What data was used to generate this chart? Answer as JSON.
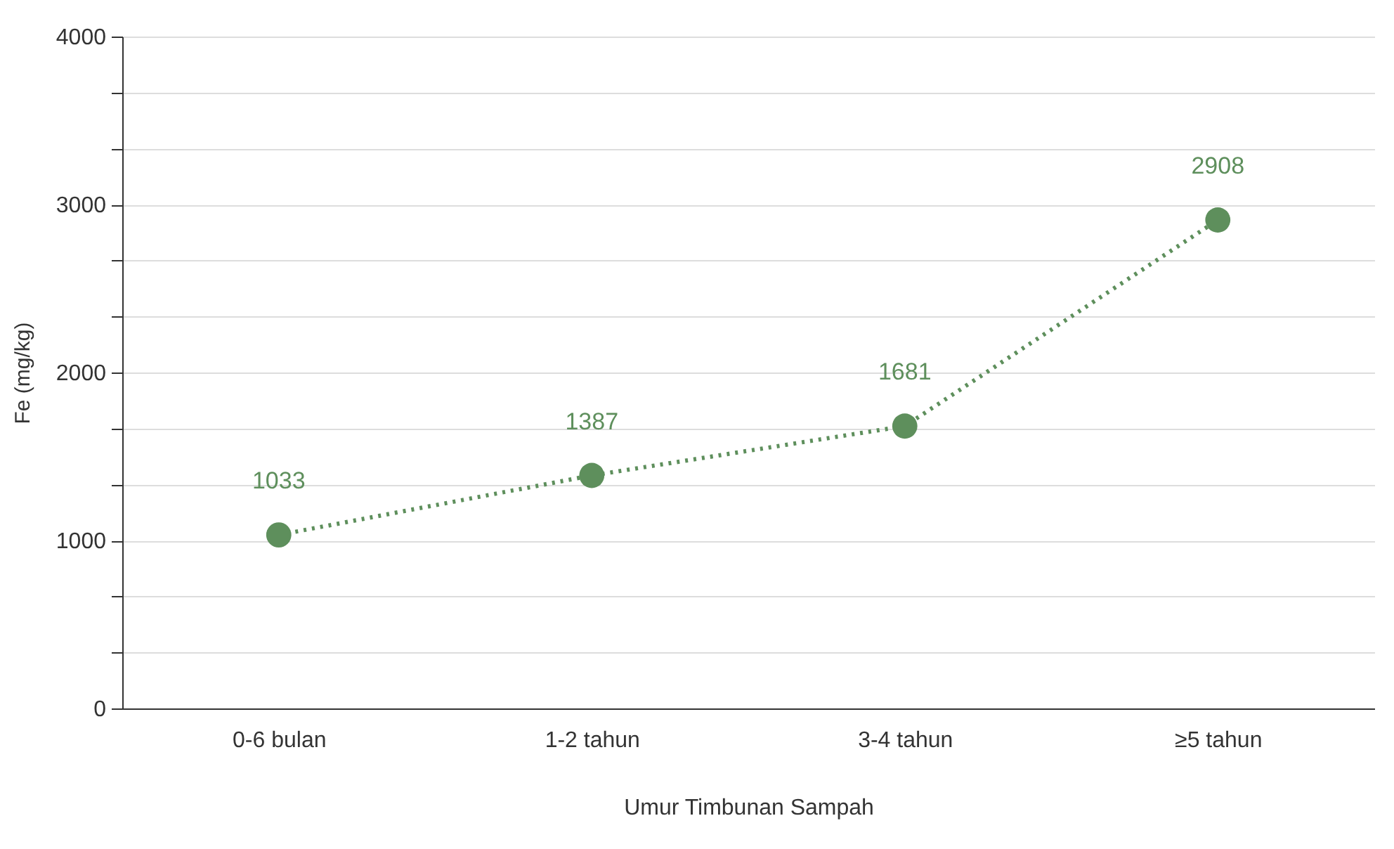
{
  "chart_data": {
    "type": "line",
    "xlabel": "Umur Timbunan Sampah",
    "ylabel": "Fe (mg/kg)",
    "categories": [
      "0-6 bulan",
      "1-2 tahun",
      "3-4 tahun",
      "≥5 tahun"
    ],
    "series": [
      {
        "color": "#5e8f5c",
        "values": [
          1033,
          1387,
          1681,
          2908
        ]
      }
    ],
    "ylim": [
      0,
      4000
    ],
    "yticks": [
      0,
      {
        "value": 333.3,
        "label": null
      },
      {
        "value": 666.7,
        "label": null
      },
      1000,
      {
        "value": 1333.3,
        "label": null
      },
      {
        "value": 1666.7,
        "label": null
      },
      2000,
      {
        "value": 2333.3,
        "label": null
      },
      {
        "value": 2666.7,
        "label": null
      },
      3000,
      {
        "value": 3333.3,
        "label": null
      },
      {
        "value": 3666.7,
        "label": null
      },
      4000
    ],
    "grid": "y",
    "marker": "circle",
    "line_style": "dotted",
    "data_labels": true
  }
}
